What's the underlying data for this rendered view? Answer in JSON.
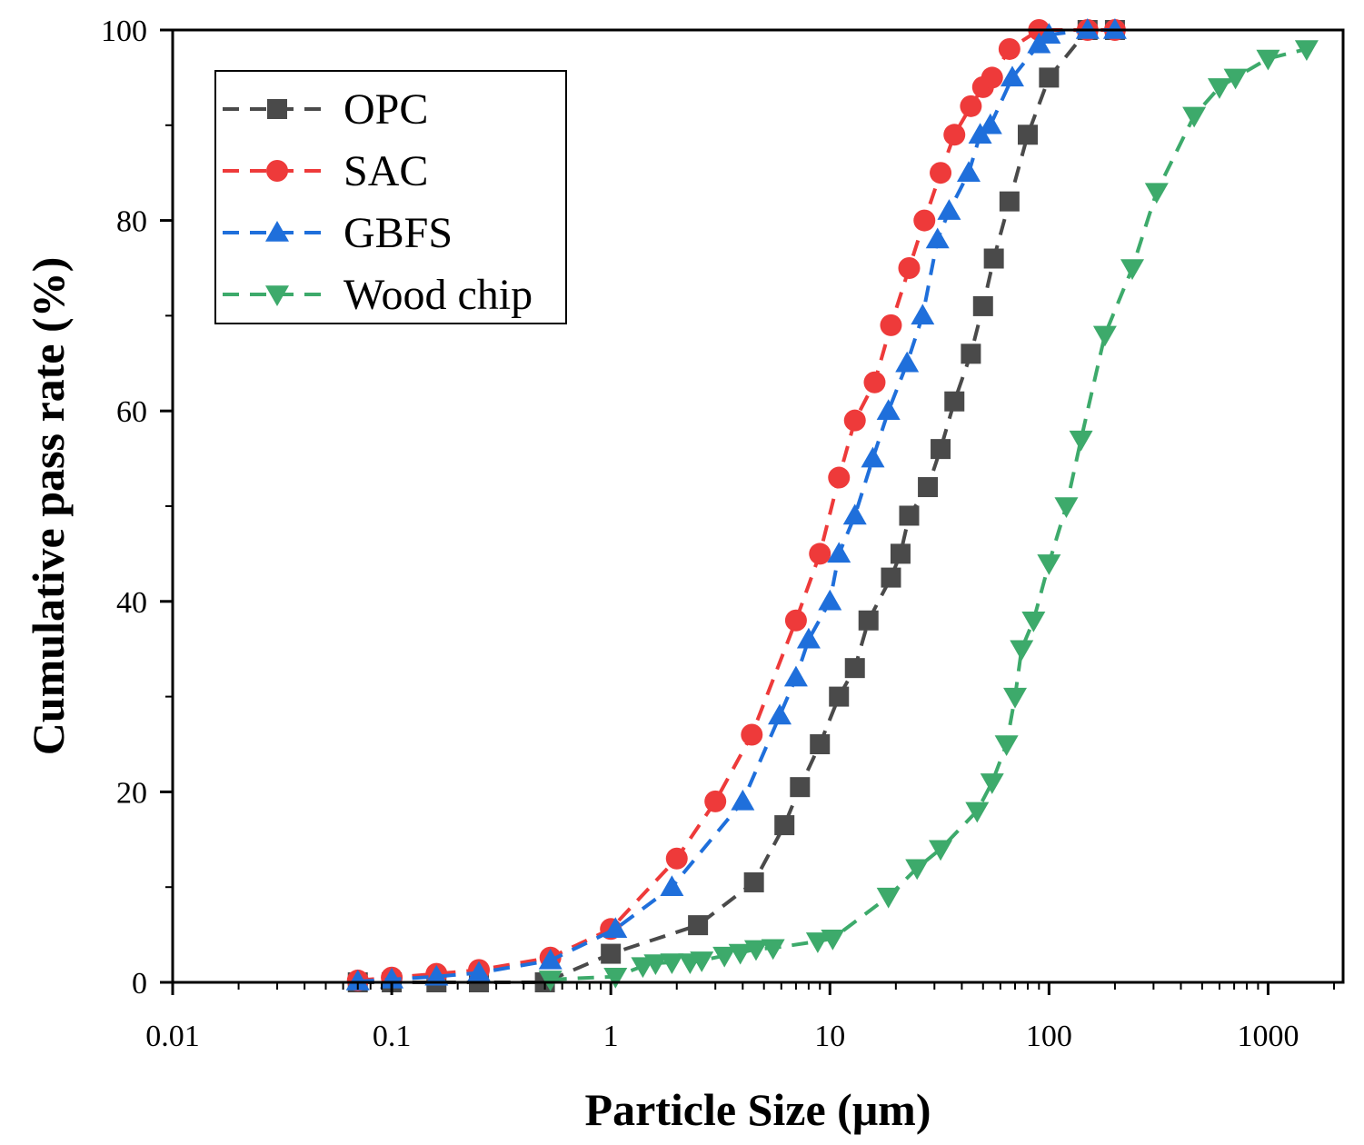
{
  "chart_data": {
    "type": "scatter",
    "title": "",
    "xlabel": "Particle Size (μm)",
    "ylabel": "Cumulative pass rate (%)",
    "xscale": "log",
    "xlim": [
      0.01,
      2200
    ],
    "ylim": [
      0,
      100
    ],
    "x_ticks": [
      {
        "value": 0.01,
        "label": "0.01"
      },
      {
        "value": 0.1,
        "label": "0.1"
      },
      {
        "value": 1,
        "label": "1"
      },
      {
        "value": 10,
        "label": "10"
      },
      {
        "value": 100,
        "label": "100"
      },
      {
        "value": 1000,
        "label": "1000"
      }
    ],
    "y_ticks": [
      {
        "value": 0,
        "label": "0"
      },
      {
        "value": 20,
        "label": "20"
      },
      {
        "value": 40,
        "label": "40"
      },
      {
        "value": 60,
        "label": "60"
      },
      {
        "value": 80,
        "label": "80"
      },
      {
        "value": 100,
        "label": "100"
      }
    ],
    "legend_position": "top-left",
    "series": [
      {
        "name": "OPC",
        "color": "#4a4a4a",
        "marker": "square",
        "line": "dashed",
        "x": [
          0.07,
          0.1,
          0.16,
          0.25,
          0.5,
          1.0,
          2.5,
          4.5,
          6.2,
          7.3,
          9.0,
          11.0,
          13.0,
          15.0,
          19.0,
          21.0,
          23.0,
          28.0,
          32.0,
          37.0,
          44.0,
          50.0,
          56.0,
          66.0,
          80.0,
          100.0,
          150.0,
          200.0
        ],
        "y": [
          0,
          0,
          0,
          0,
          0,
          3,
          6,
          10.5,
          16.5,
          20.5,
          25,
          30,
          33,
          38,
          42.5,
          45,
          49,
          52,
          56,
          61,
          66,
          71,
          76,
          82,
          89,
          95,
          100,
          100
        ]
      },
      {
        "name": "SAC",
        "color": "#ee3a3a",
        "marker": "circle",
        "line": "dashed",
        "x": [
          0.07,
          0.1,
          0.16,
          0.25,
          0.53,
          1.0,
          2.0,
          3.0,
          4.4,
          7.0,
          9.0,
          11.0,
          13.0,
          16.0,
          19.0,
          23.0,
          27.0,
          32.0,
          37.0,
          44.0,
          50.0,
          55.0,
          66.0,
          90.0,
          150.0,
          200.0
        ],
        "y": [
          0.2,
          0.5,
          0.9,
          1.3,
          2.6,
          5.6,
          13,
          19,
          26,
          38,
          45,
          53,
          59,
          63,
          69,
          75,
          80,
          85,
          89,
          92,
          94,
          95,
          98,
          100,
          100,
          100
        ]
      },
      {
        "name": "GBFS",
        "color": "#1f6fdb",
        "marker": "triangle-up",
        "line": "dashed",
        "x": [
          0.07,
          0.1,
          0.16,
          0.25,
          0.53,
          1.05,
          1.9,
          4.0,
          5.9,
          7.0,
          8.0,
          10.0,
          11.0,
          13.0,
          15.7,
          18.5,
          22.5,
          26.5,
          31.0,
          35.0,
          43.0,
          48.5,
          54.0,
          68.0,
          90.0,
          100.0,
          150.0,
          200.0
        ],
        "y": [
          0.1,
          0.3,
          0.6,
          1.0,
          2.3,
          5.6,
          10,
          19,
          28,
          32,
          36,
          40,
          45,
          49,
          55,
          60,
          65,
          70,
          78,
          81,
          85,
          89,
          90,
          95,
          98.5,
          99.5,
          100,
          100
        ]
      },
      {
        "name": "Wood chip",
        "color": "#3daa6b",
        "marker": "triangle-down",
        "line": "dashed",
        "x": [
          0.53,
          1.05,
          1.4,
          1.6,
          1.9,
          2.3,
          2.6,
          3.3,
          3.9,
          4.6,
          5.5,
          8.8,
          10.3,
          18.5,
          25.0,
          32.0,
          47.0,
          55.0,
          64.0,
          70.0,
          75.0,
          85.0,
          100.0,
          120.0,
          140.0,
          180.0,
          240.0,
          310.0,
          460.0,
          600.0,
          710.0,
          1000.0,
          1500.0
        ],
        "y": [
          0.3,
          0.6,
          1.7,
          2.0,
          2.1,
          2.1,
          2.3,
          2.8,
          3.1,
          3.5,
          3.6,
          4.3,
          4.6,
          9,
          12,
          14,
          18,
          21,
          25,
          30,
          35,
          38,
          44,
          50,
          57,
          68,
          75,
          83,
          91,
          94,
          95,
          97,
          98
        ]
      }
    ]
  }
}
